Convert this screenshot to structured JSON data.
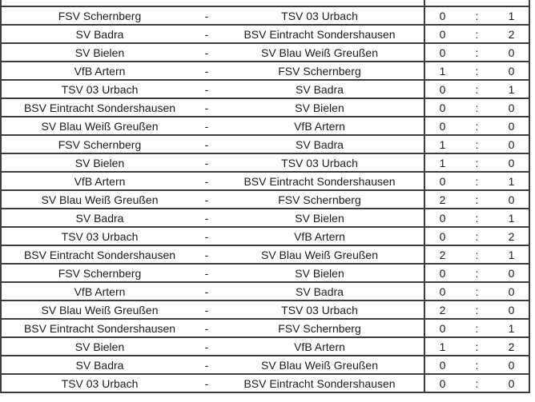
{
  "table": {
    "separator": "-",
    "score_separator": ":",
    "colors": {
      "border": "#3d3d3d",
      "text": "#1b1b1b",
      "background": "#ffffff"
    },
    "rows": [
      {
        "home": "FSV Schernberg",
        "away": "TSV 03 Urbach",
        "home_score": "0",
        "away_score": "1"
      },
      {
        "home": "SV Badra",
        "away": "BSV Eintracht Sondershausen",
        "home_score": "0",
        "away_score": "2"
      },
      {
        "home": "SV Bielen",
        "away": "SV Blau Weiß Greußen",
        "home_score": "0",
        "away_score": "0"
      },
      {
        "home": "VfB Artern",
        "away": "FSV Schernberg",
        "home_score": "1",
        "away_score": "0"
      },
      {
        "home": "TSV 03 Urbach",
        "away": "SV Badra",
        "home_score": "0",
        "away_score": "1"
      },
      {
        "home": "BSV Eintracht Sondershausen",
        "away": "SV Bielen",
        "home_score": "0",
        "away_score": "0"
      },
      {
        "home": "SV Blau Weiß Greußen",
        "away": "VfB Artern",
        "home_score": "0",
        "away_score": "0"
      },
      {
        "home": "FSV Schernberg",
        "away": "SV Badra",
        "home_score": "1",
        "away_score": "0"
      },
      {
        "home": "SV Bielen",
        "away": "TSV 03 Urbach",
        "home_score": "1",
        "away_score": "0"
      },
      {
        "home": "VfB Artern",
        "away": "BSV Eintracht Sondershausen",
        "home_score": "0",
        "away_score": "1"
      },
      {
        "home": "SV Blau Weiß Greußen",
        "away": "FSV Schernberg",
        "home_score": "2",
        "away_score": "0"
      },
      {
        "home": "SV Badra",
        "away": "SV Bielen",
        "home_score": "0",
        "away_score": "1"
      },
      {
        "home": "TSV 03 Urbach",
        "away": "VfB Artern",
        "home_score": "0",
        "away_score": "2"
      },
      {
        "home": "BSV Eintracht Sondershausen",
        "away": "SV Blau Weiß Greußen",
        "home_score": "2",
        "away_score": "1"
      },
      {
        "home": "FSV Schernberg",
        "away": "SV Bielen",
        "home_score": "0",
        "away_score": "0"
      },
      {
        "home": "VfB Artern",
        "away": "SV Badra",
        "home_score": "0",
        "away_score": "0"
      },
      {
        "home": "SV Blau Weiß Greußen",
        "away": "TSV 03 Urbach",
        "home_score": "2",
        "away_score": "0"
      },
      {
        "home": "BSV Eintracht Sondershausen",
        "away": "FSV Schernberg",
        "home_score": "0",
        "away_score": "1"
      },
      {
        "home": "SV Bielen",
        "away": "VfB Artern",
        "home_score": "1",
        "away_score": "2"
      },
      {
        "home": "SV Badra",
        "away": "SV Blau Weiß Greußen",
        "home_score": "0",
        "away_score": "0"
      },
      {
        "home": "TSV 03 Urbach",
        "away": "BSV Eintracht Sondershausen",
        "home_score": "0",
        "away_score": "0"
      }
    ]
  }
}
